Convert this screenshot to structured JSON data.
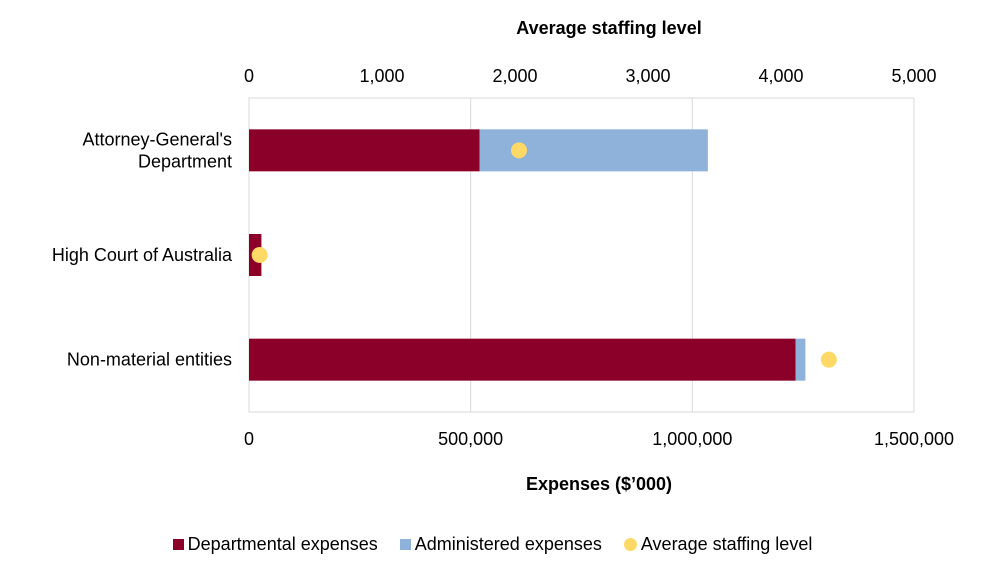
{
  "chart_data": {
    "type": "bar",
    "orientation": "horizontal",
    "stacked": true,
    "categories": [
      "Attorney-General's Department",
      "High Court of Australia",
      "Non-material entities"
    ],
    "category_lines": [
      [
        "Attorney-General's",
        "Department"
      ],
      [
        "High Court of Australia"
      ],
      [
        "Non-material entities"
      ]
    ],
    "series": [
      {
        "name": "Departmental expenses",
        "color": "#8b0029",
        "values": [
          520000,
          28000,
          1233000
        ]
      },
      {
        "name": "Administered expenses",
        "color": "#8eb2da",
        "values": [
          515000,
          0,
          22000
        ]
      }
    ],
    "secondary_series": {
      "name": "Average staffing level",
      "color": "#ffd966",
      "marker": "circle",
      "values": [
        2030,
        80,
        4360
      ]
    },
    "xlabel": "Expenses ($’000)",
    "x2label": "Average staffing level",
    "xlim": [
      0,
      1500000
    ],
    "x2lim": [
      0,
      5000
    ],
    "xticks": [
      "0",
      "500,000",
      "1,000,000",
      "1,500,000"
    ],
    "xtick_values": [
      0,
      500000,
      1000000,
      1500000
    ],
    "x2ticks": [
      "0",
      "1,000",
      "2,000",
      "3,000",
      "4,000",
      "5,000"
    ],
    "x2tick_values": [
      0,
      1000,
      2000,
      3000,
      4000,
      5000
    ],
    "grid": true,
    "legend_position": "bottom"
  }
}
